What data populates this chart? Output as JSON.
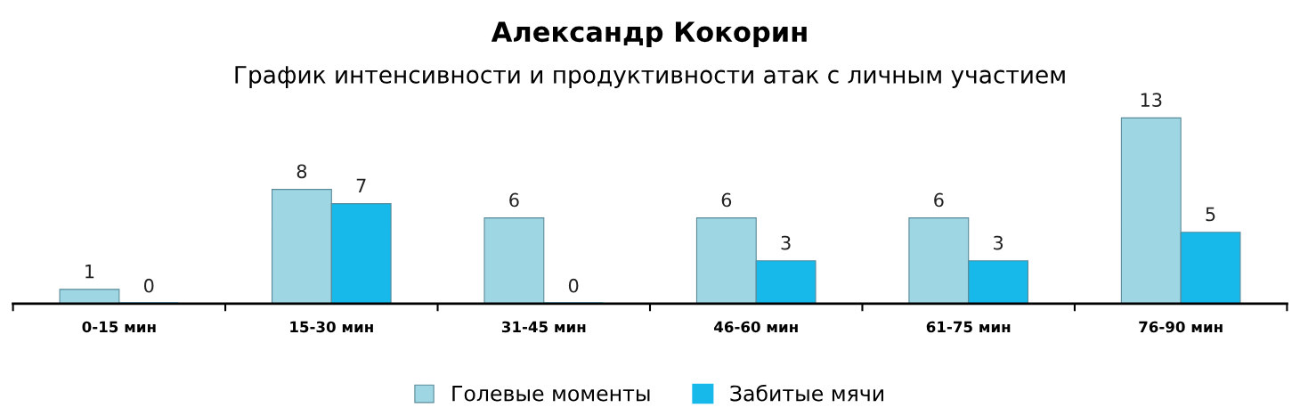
{
  "chart_data": {
    "type": "bar",
    "title": "Александр Кокорин",
    "subtitle": "График интенсивности и продуктивности атак с личным участием",
    "categories": [
      "0-15 мин",
      "15-30 мин",
      "31-45 мин",
      "46-60 мин",
      "61-75 мин",
      "76-90 мин"
    ],
    "series": [
      {
        "name": "Голевые моменты",
        "color": "#9fd6e4",
        "values": [
          1,
          8,
          6,
          6,
          6,
          13
        ]
      },
      {
        "name": "Забитые мячи",
        "color": "#16b9ea",
        "values": [
          0,
          7,
          0,
          3,
          3,
          5
        ]
      }
    ],
    "data_labels": true,
    "legend": "bottom",
    "grid": false
  }
}
